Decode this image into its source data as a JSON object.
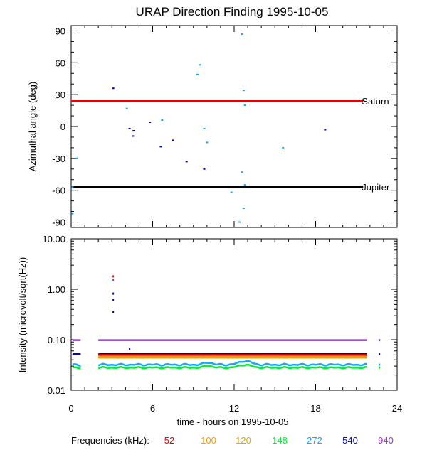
{
  "chart_data": [
    {
      "type": "scatter",
      "title": "URAP Direction Finding  1995-10-05",
      "ylabel": "Azimuthal angle (deg)",
      "xlim": [
        0,
        24
      ],
      "ylim": [
        -95,
        95
      ],
      "yticks": [
        90,
        60,
        30,
        0,
        -30,
        -60,
        -90
      ],
      "ytick_labels": [
        "90",
        "60",
        "30",
        "0",
        "-30",
        "-60",
        "-90"
      ],
      "reference_lines": [
        {
          "name": "Saturn",
          "y": 24,
          "x_range": [
            0,
            21.5
          ],
          "color": "#ee0000"
        },
        {
          "name": "Jupiter",
          "y": -57,
          "x_range": [
            0,
            21.5
          ],
          "color": "#000000"
        }
      ],
      "points": [
        {
          "x": 0.1,
          "y": -57,
          "freq": "272"
        },
        {
          "x": 0.4,
          "y": -30,
          "freq": "272"
        },
        {
          "x": 0.1,
          "y": -82,
          "freq": "272"
        },
        {
          "x": 3.1,
          "y": 36,
          "freq": "540"
        },
        {
          "x": 4.1,
          "y": 17,
          "freq": "272"
        },
        {
          "x": 4.3,
          "y": -2,
          "freq": "540"
        },
        {
          "x": 4.6,
          "y": -4,
          "freq": "540"
        },
        {
          "x": 4.55,
          "y": -9,
          "freq": "540"
        },
        {
          "x": 5.8,
          "y": 4,
          "freq": "540"
        },
        {
          "x": 6.7,
          "y": 6,
          "freq": "272"
        },
        {
          "x": 6.6,
          "y": -19,
          "freq": "540"
        },
        {
          "x": 7.5,
          "y": -13,
          "freq": "540"
        },
        {
          "x": 8.5,
          "y": -33,
          "freq": "540"
        },
        {
          "x": 9.3,
          "y": 49,
          "freq": "272"
        },
        {
          "x": 9.5,
          "y": 58,
          "freq": "272"
        },
        {
          "x": 9.8,
          "y": -2,
          "freq": "272"
        },
        {
          "x": 10.0,
          "y": -15,
          "freq": "272"
        },
        {
          "x": 9.8,
          "y": -40,
          "freq": "540"
        },
        {
          "x": 11.8,
          "y": -62,
          "freq": "272"
        },
        {
          "x": 12.4,
          "y": -90,
          "freq": "272"
        },
        {
          "x": 12.6,
          "y": 87,
          "freq": "272"
        },
        {
          "x": 12.7,
          "y": 34,
          "freq": "272"
        },
        {
          "x": 12.8,
          "y": 20,
          "freq": "272"
        },
        {
          "x": 12.6,
          "y": -43,
          "freq": "272"
        },
        {
          "x": 12.8,
          "y": -55,
          "freq": "272"
        },
        {
          "x": 12.7,
          "y": -77,
          "freq": "272"
        },
        {
          "x": 15.6,
          "y": -20,
          "freq": "272"
        },
        {
          "x": 18.7,
          "y": -3,
          "freq": "540"
        }
      ]
    },
    {
      "type": "line",
      "ylabel": "Intensity (microvolt/sqrt(Hz))",
      "xlabel": "time - hours on 1995-10-05",
      "xlim": [
        0,
        24
      ],
      "xticks": [
        0,
        6,
        12,
        18,
        24
      ],
      "xtick_labels": [
        "0",
        "6",
        "12",
        "18",
        "24"
      ],
      "yscale": "log",
      "ylim": [
        0.01,
        10
      ],
      "yticks": [
        10,
        1,
        0.1,
        0.01
      ],
      "ytick_labels": [
        "10.00",
        "1.00",
        "0.10",
        "0.01"
      ],
      "series": [
        {
          "freq": "940",
          "segments": [
            [
              [
                0.1,
                0.098
              ],
              [
                0.7,
                0.098
              ]
            ],
            [
              [
                2.0,
                0.098
              ],
              [
                21.8,
                0.098
              ]
            ]
          ],
          "bump": 0
        },
        {
          "freq": "540",
          "segments": [
            [
              [
                0.1,
                0.052
              ],
              [
                0.7,
                0.052
              ]
            ],
            [
              [
                2.0,
                0.052
              ],
              [
                21.8,
                0.052
              ]
            ]
          ],
          "bump": 0
        },
        {
          "freq": "52",
          "segments": [
            [
              [
                2.0,
                0.05
              ],
              [
                21.8,
                0.05
              ]
            ]
          ],
          "bump": 0
        },
        {
          "freq": "100",
          "segments": [
            [
              [
                2.0,
                0.046
              ],
              [
                21.8,
                0.046
              ]
            ]
          ],
          "bump": 0
        },
        {
          "freq": "120",
          "segments": [
            [
              [
                2.0,
                0.044
              ],
              [
                21.8,
                0.044
              ]
            ]
          ],
          "bump": 0
        },
        {
          "freq": "272",
          "segments": [
            [
              [
                0.1,
                0.032
              ],
              [
                0.7,
                0.032
              ]
            ],
            [
              [
                2.0,
                0.032
              ],
              [
                21.8,
                0.032
              ]
            ]
          ],
          "bump": 0.006
        },
        {
          "freq": "148",
          "segments": [
            [
              [
                0.1,
                0.028
              ],
              [
                0.7,
                0.028
              ]
            ],
            [
              [
                2.0,
                0.028
              ],
              [
                21.8,
                0.028
              ]
            ]
          ],
          "bump": 0.004
        }
      ],
      "spikes": [
        {
          "x": 3.1,
          "y": 1.8,
          "freq": "52"
        },
        {
          "x": 3.1,
          "y": 1.5,
          "freq": "940"
        },
        {
          "x": 3.1,
          "y": 0.82,
          "freq": "540"
        },
        {
          "x": 3.1,
          "y": 0.62,
          "freq": "540"
        },
        {
          "x": 3.1,
          "y": 0.36,
          "freq": "540"
        },
        {
          "x": 4.3,
          "y": 0.065,
          "freq": "540"
        },
        {
          "x": 22.7,
          "y": 0.098,
          "freq": "940"
        },
        {
          "x": 22.7,
          "y": 0.052,
          "freq": "540"
        },
        {
          "x": 22.7,
          "y": 0.032,
          "freq": "272"
        },
        {
          "x": 22.7,
          "y": 0.028,
          "freq": "148"
        }
      ]
    }
  ],
  "legend": {
    "label": "Frequencies (kHz):",
    "items": [
      {
        "freq": "52",
        "color": "#ee0000"
      },
      {
        "freq": "100",
        "color": "#ff9900"
      },
      {
        "freq": "120",
        "color": "#ddaa00"
      },
      {
        "freq": "148",
        "color": "#00ee33"
      },
      {
        "freq": "272",
        "color": "#11aaff"
      },
      {
        "freq": "540",
        "color": "#0000cc"
      },
      {
        "freq": "940",
        "color": "#9933dd"
      }
    ]
  }
}
